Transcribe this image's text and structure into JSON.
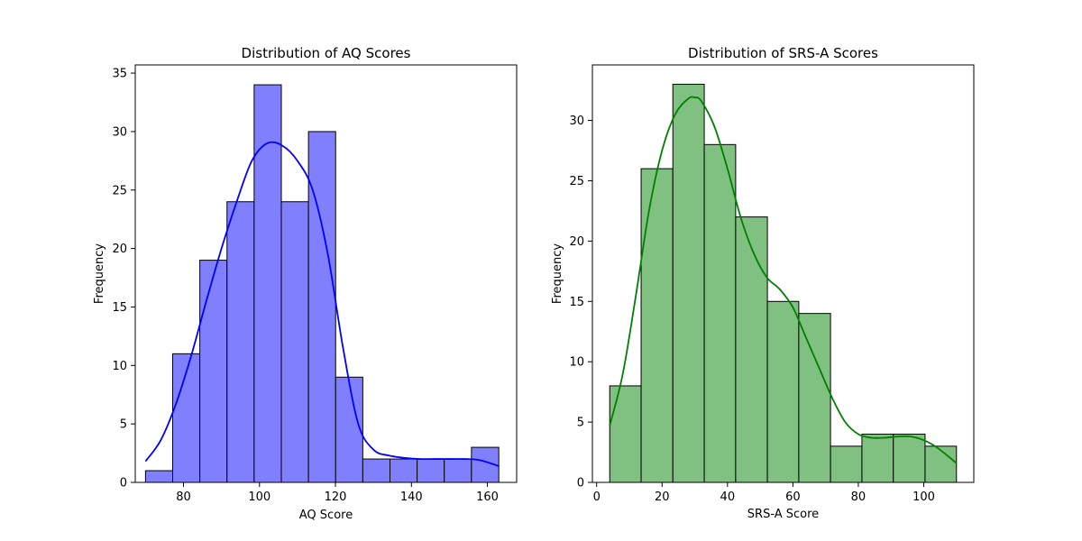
{
  "chart_data": [
    {
      "type": "histogram",
      "title": "Distribution of AQ Scores",
      "xlabel": "AQ Score",
      "ylabel": "Frequency",
      "xlim": [
        67.3,
        167.7
      ],
      "ylim": [
        0,
        35.7
      ],
      "xticks": [
        80,
        100,
        120,
        140,
        160
      ],
      "yticks": [
        0,
        5,
        10,
        15,
        20,
        25,
        30,
        35
      ],
      "bins": [
        {
          "start": 70.0,
          "end": 77.15,
          "count": 1
        },
        {
          "start": 77.15,
          "end": 84.3,
          "count": 11
        },
        {
          "start": 84.3,
          "end": 91.45,
          "count": 19
        },
        {
          "start": 91.45,
          "end": 98.6,
          "count": 24
        },
        {
          "start": 98.6,
          "end": 105.75,
          "count": 34
        },
        {
          "start": 105.75,
          "end": 112.9,
          "count": 24
        },
        {
          "start": 112.9,
          "end": 120.05,
          "count": 30
        },
        {
          "start": 120.05,
          "end": 127.2,
          "count": 9
        },
        {
          "start": 127.2,
          "end": 134.35,
          "count": 2
        },
        {
          "start": 134.35,
          "end": 141.5,
          "count": 2
        },
        {
          "start": 141.5,
          "end": 148.65,
          "count": 2
        },
        {
          "start": 148.65,
          "end": 155.8,
          "count": 2
        },
        {
          "start": 155.8,
          "end": 163.0,
          "count": 3
        }
      ],
      "kde": {
        "x": [
          70,
          74,
          78,
          82,
          86,
          90,
          94,
          98,
          102,
          106,
          110,
          114,
          118,
          122,
          126,
          130,
          134,
          138,
          142,
          146,
          150,
          154,
          158,
          163
        ],
        "y": [
          1.8,
          3.6,
          6.7,
          10.8,
          15.5,
          20.0,
          24.0,
          27.5,
          29.0,
          28.8,
          27.5,
          25.0,
          19.5,
          11.5,
          5.0,
          2.8,
          2.3,
          2.1,
          2.0,
          2.0,
          2.0,
          2.0,
          1.9,
          1.4
        ]
      },
      "bar_fill": "#8080ff",
      "line_color": "#0000ff",
      "grid": false
    },
    {
      "type": "histogram",
      "title": "Distribution of SRS-A Scores",
      "xlabel": "SRS-A Score",
      "ylabel": "Frequency",
      "xlim": [
        -1.3,
        115.3
      ],
      "ylim": [
        0,
        34.6
      ],
      "xticks": [
        0,
        20,
        40,
        60,
        80,
        100
      ],
      "yticks": [
        0,
        5,
        10,
        15,
        20,
        25,
        30
      ],
      "bins": [
        {
          "start": 4.0,
          "end": 13.6,
          "count": 8
        },
        {
          "start": 13.6,
          "end": 23.3,
          "count": 26
        },
        {
          "start": 23.3,
          "end": 32.9,
          "count": 33
        },
        {
          "start": 32.9,
          "end": 42.5,
          "count": 28
        },
        {
          "start": 42.5,
          "end": 52.2,
          "count": 22
        },
        {
          "start": 52.2,
          "end": 61.8,
          "count": 15
        },
        {
          "start": 61.8,
          "end": 71.5,
          "count": 14
        },
        {
          "start": 71.5,
          "end": 81.1,
          "count": 3
        },
        {
          "start": 81.1,
          "end": 90.7,
          "count": 4
        },
        {
          "start": 90.7,
          "end": 100.4,
          "count": 4
        },
        {
          "start": 100.4,
          "end": 110.0,
          "count": 3
        }
      ],
      "kde": {
        "x": [
          4,
          8,
          12,
          16,
          20,
          24,
          28,
          30,
          32,
          36,
          40,
          44,
          48,
          52,
          56,
          60,
          64,
          68,
          72,
          76,
          80,
          84,
          88,
          92,
          96,
          100,
          104,
          110
        ],
        "y": [
          4.7,
          9.0,
          15.5,
          22.5,
          27.5,
          30.5,
          31.8,
          31.9,
          31.6,
          29.5,
          26.0,
          22.0,
          19.0,
          17.0,
          16.0,
          14.5,
          12.0,
          9.5,
          7.0,
          5.0,
          4.0,
          3.7,
          3.7,
          3.8,
          3.8,
          3.5,
          2.9,
          1.6
        ]
      },
      "bar_fill": "#80c080",
      "line_color": "#008000",
      "grid": false
    }
  ]
}
